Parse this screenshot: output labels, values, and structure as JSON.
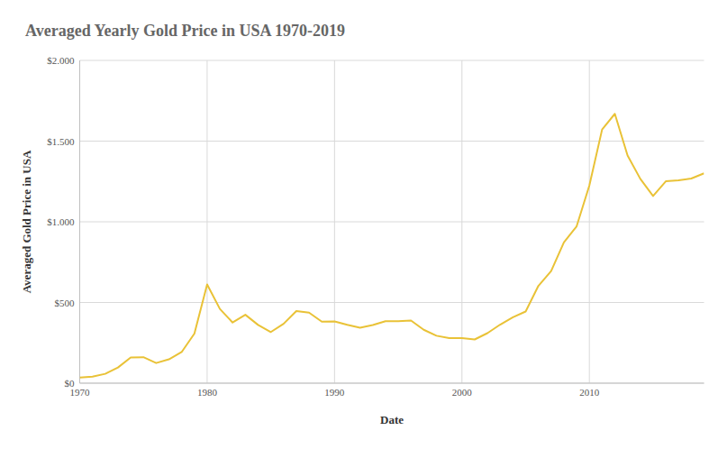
{
  "chart_data": {
    "type": "line",
    "title": "Averaged Yearly Gold Price in USA 1970-2019",
    "x_label": "Date",
    "y_label": "Averaged Gold Price in USA",
    "x": [
      1970,
      1971,
      1972,
      1973,
      1974,
      1975,
      1976,
      1977,
      1978,
      1979,
      1980,
      1981,
      1982,
      1983,
      1984,
      1985,
      1986,
      1987,
      1988,
      1989,
      1990,
      1991,
      1992,
      1993,
      1994,
      1995,
      1996,
      1997,
      1998,
      1999,
      2000,
      2001,
      2002,
      2003,
      2004,
      2005,
      2006,
      2007,
      2008,
      2009,
      2010,
      2011,
      2012,
      2013,
      2014,
      2015,
      2016,
      2017,
      2018,
      2019
    ],
    "values": [
      35,
      40,
      58,
      97,
      159,
      161,
      125,
      148,
      193,
      307,
      612,
      460,
      376,
      424,
      361,
      317,
      368,
      447,
      437,
      381,
      383,
      362,
      344,
      360,
      384,
      384,
      388,
      331,
      294,
      279,
      279,
      271,
      310,
      363,
      409,
      444,
      603,
      695,
      872,
      972,
      1225,
      1572,
      1669,
      1411,
      1266,
      1160,
      1251,
      1257,
      1268,
      1300
    ],
    "color": "#e9c237",
    "xlim": [
      1970,
      2019
    ],
    "xticks": [
      1970,
      1980,
      1990,
      2000,
      2010
    ],
    "ylim": [
      0,
      2000
    ],
    "yticks": [
      {
        "value": 0,
        "label": "$0"
      },
      {
        "value": 500,
        "label": "$500"
      },
      {
        "value": 1000,
        "label": "$1.000"
      },
      {
        "value": 1500,
        "label": "$1.500"
      },
      {
        "value": 2000,
        "label": "$2.000"
      }
    ],
    "grid": true
  }
}
